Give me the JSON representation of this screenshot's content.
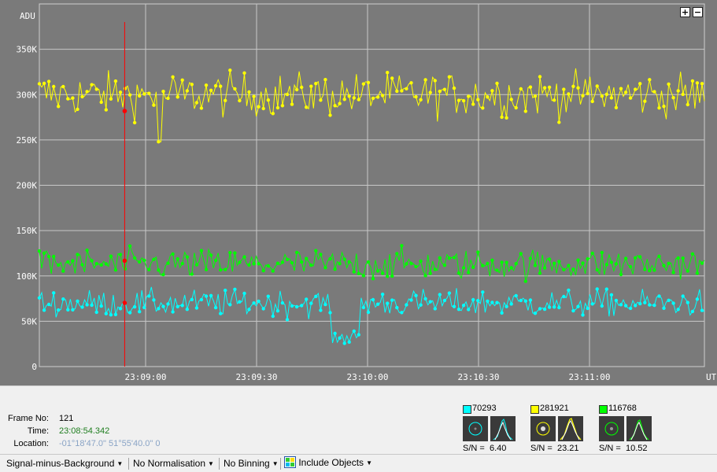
{
  "chart_data": {
    "type": "line",
    "ylabel": "ADU",
    "xlabel": "UT",
    "yticks": [
      "0",
      "50K",
      "100K",
      "150K",
      "200K",
      "250K",
      "300K",
      "350K"
    ],
    "ylim": [
      0,
      400000
    ],
    "xticks": [
      "23:09:00",
      "23:09:30",
      "23:10:00",
      "23:10:30",
      "23:11:00"
    ],
    "grid": true,
    "series": [
      {
        "color": "#ffff00",
        "description": "yellow target",
        "mean": 300000,
        "noise": 13000,
        "min_dip": 248000
      },
      {
        "color": "#00ff00",
        "description": "green target",
        "mean": 113000,
        "noise": 9000
      },
      {
        "color": "#00ffff",
        "description": "cyan target",
        "mean": 70000,
        "noise": 8000,
        "dip_start": "23:09:50",
        "dip_end": "23:09:58",
        "dip_mean": 32000
      }
    ],
    "cursor_time": "23:08:54.342",
    "cursor_points": [
      {
        "series": 0,
        "value": 281921
      },
      {
        "series": 1,
        "value": 116768
      },
      {
        "series": 2,
        "value": 70293
      }
    ]
  },
  "zoom": {
    "plus": "+",
    "minus": "−"
  },
  "info": {
    "frame_label": "Frame No:",
    "frame_value": "121",
    "time_label": "Time:",
    "time_value": "23:08:54.342",
    "location_label": "Location:",
    "location_value": "-01°18'47.0\" 51°55'40.0\" 0"
  },
  "targets": [
    {
      "value": "70293",
      "color": "#00ffff",
      "sn_label": "S/N =",
      "sn_value": "6.40"
    },
    {
      "value": "281921",
      "color": "#ffff00",
      "sn_label": "S/N =",
      "sn_value": "23.21"
    },
    {
      "value": "116768",
      "color": "#00ff00",
      "sn_label": "S/N =",
      "sn_value": "10.52"
    }
  ],
  "status": {
    "signal": "Signal-minus-Background",
    "normalisation": "No Normalisation",
    "binning": "No Binning",
    "objects": "Include Objects"
  }
}
